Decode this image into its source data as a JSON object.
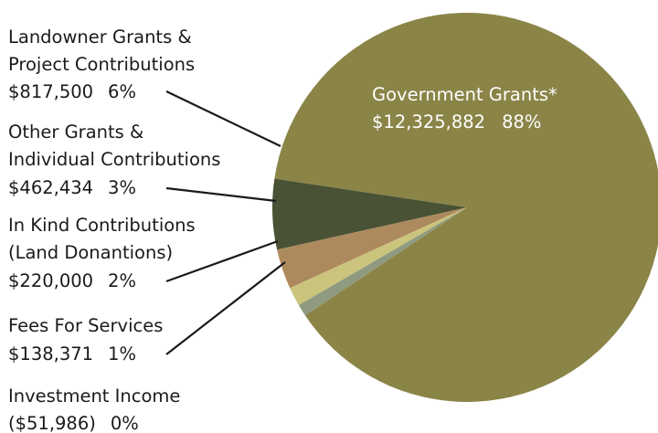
{
  "chart_data": {
    "type": "pie",
    "title": "",
    "slices": [
      {
        "name_lines": [
          "Government Grants*"
        ],
        "amount": "$12,325,882",
        "percent_label": "88%",
        "value": 12325882,
        "color": "#8a8447"
      },
      {
        "name_lines": [
          "Landowner Grants &",
          "Project Contributions"
        ],
        "amount": "$817,500",
        "percent_label": "6%",
        "value": 817500,
        "color": "#4a5236"
      },
      {
        "name_lines": [
          "Other Grants &",
          "Individual Contributions"
        ],
        "amount": "$462,434",
        "percent_label": "3%",
        "value": 462434,
        "color": "#ad8a5e"
      },
      {
        "name_lines": [
          "In Kind Contributions",
          "(Land Donantions)"
        ],
        "amount": "$220,000",
        "percent_label": "2%",
        "value": 220000,
        "color": "#cbc47d"
      },
      {
        "name_lines": [
          "Fees For Services"
        ],
        "amount": "$138,371",
        "percent_label": "1%",
        "value": 138371,
        "color": "#8f9a80"
      },
      {
        "name_lines": [
          "Investment Income"
        ],
        "amount": "($51,986)",
        "percent_label": "0%",
        "value": -51986,
        "color": "#ffffff"
      }
    ]
  }
}
